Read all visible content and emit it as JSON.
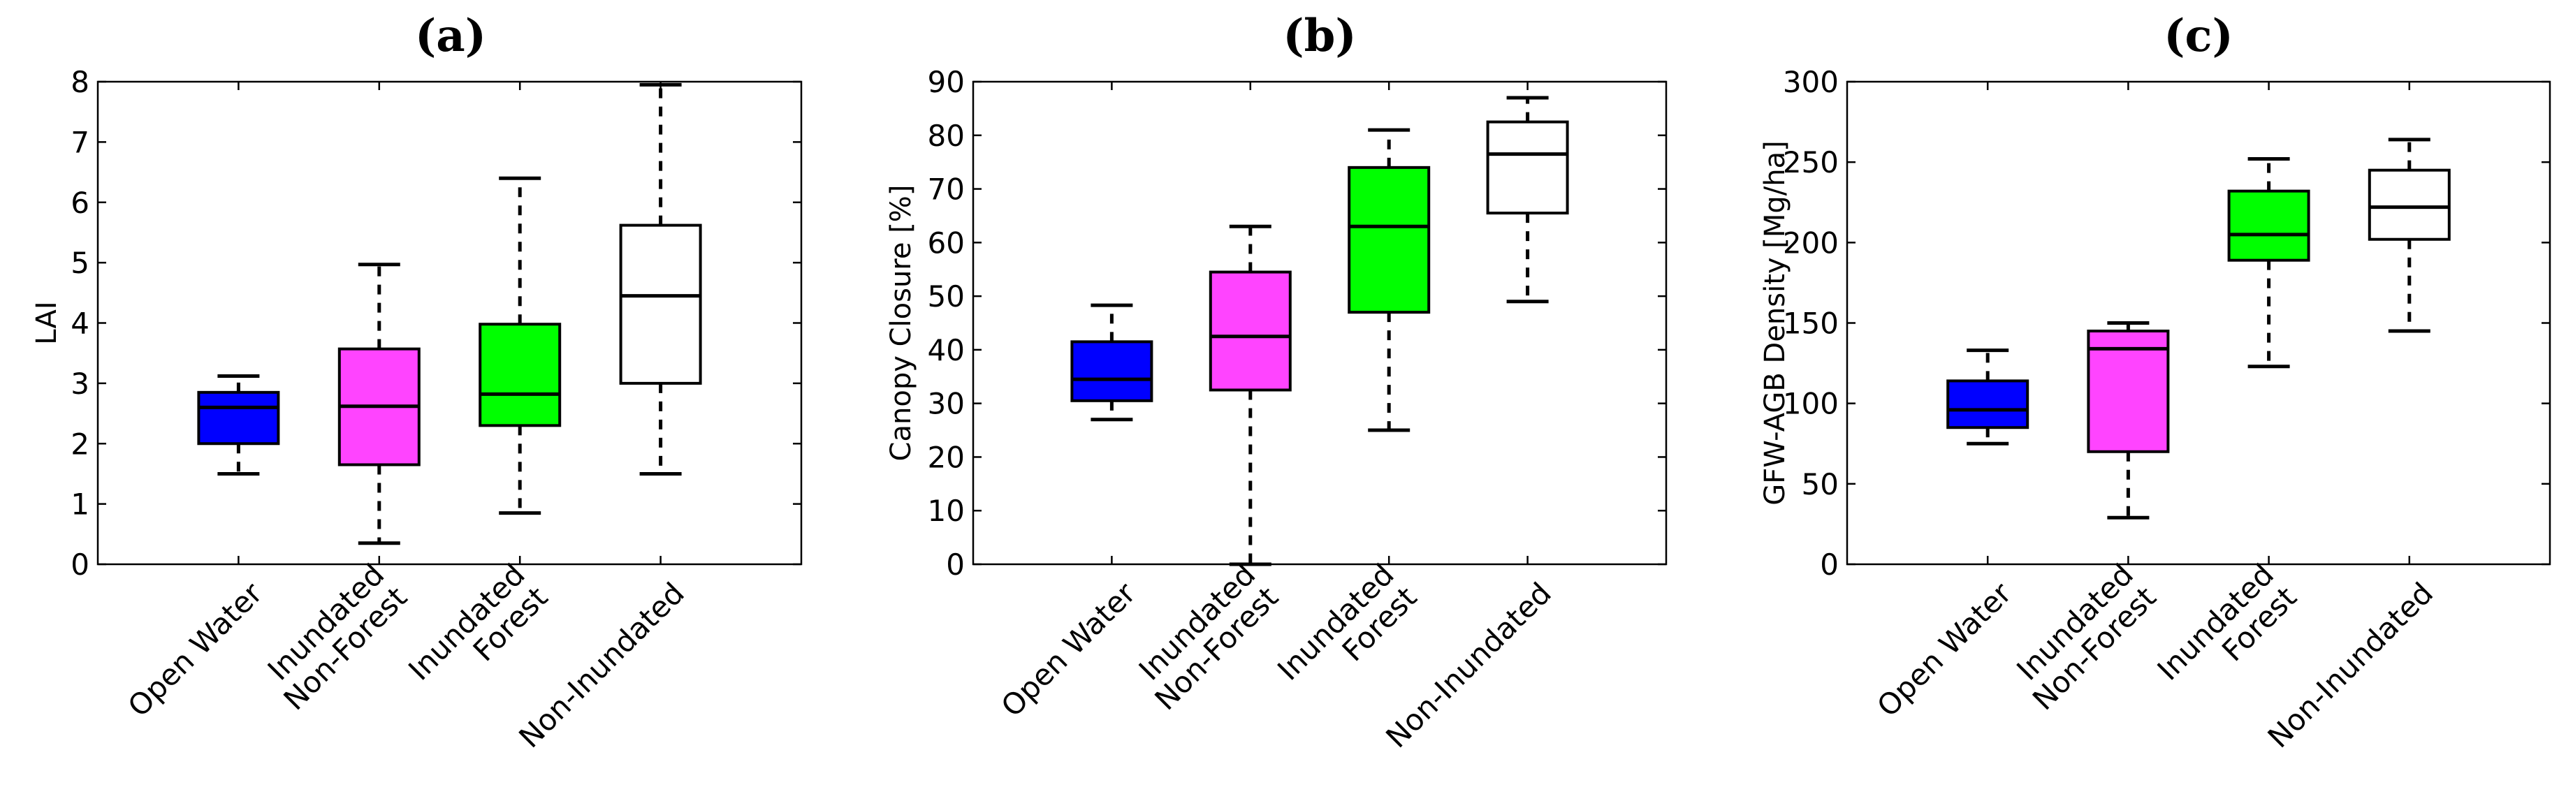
{
  "chart_data": [
    {
      "type": "box",
      "title": "(a)",
      "ylabel": "LAI",
      "ylim": [
        0,
        8
      ],
      "yticks": [
        "0",
        "1",
        "2",
        "3",
        "4",
        "5",
        "6",
        "7",
        "8"
      ],
      "categories": [
        "Open Water",
        "Inundated Non-Forest",
        "Inundated Forest",
        "Non-Inundated"
      ],
      "category_lines": [
        [
          "Open Water"
        ],
        [
          "Inundated",
          "Non-Forest"
        ],
        [
          "Inundated",
          "Forest"
        ],
        [
          "Non-Inundated"
        ]
      ],
      "boxes": [
        {
          "min": 1.5,
          "q1": 2.0,
          "median": 2.6,
          "q3": 2.85,
          "max": 3.12
        },
        {
          "min": 0.35,
          "q1": 1.65,
          "median": 2.62,
          "q3": 3.57,
          "max": 4.97
        },
        {
          "min": 0.85,
          "q1": 2.3,
          "median": 2.82,
          "q3": 3.98,
          "max": 6.4
        },
        {
          "min": 1.5,
          "q1": 3.0,
          "median": 4.45,
          "q3": 5.62,
          "max": 7.95
        }
      ]
    },
    {
      "type": "box",
      "title": "(b)",
      "ylabel": "Canopy Closure [%]",
      "ylim": [
        0,
        90
      ],
      "yticks": [
        "0",
        "10",
        "20",
        "30",
        "40",
        "50",
        "60",
        "70",
        "80",
        "90"
      ],
      "categories": [
        "Open Water",
        "Inundated Non-Forest",
        "Inundated Forest",
        "Non-Inundated"
      ],
      "category_lines": [
        [
          "Open Water"
        ],
        [
          "Inundated",
          "Non-Forest"
        ],
        [
          "Inundated",
          "Forest"
        ],
        [
          "Non-Inundated"
        ]
      ],
      "boxes": [
        {
          "min": 27,
          "q1": 30.5,
          "median": 34.5,
          "q3": 41.5,
          "max": 48.3
        },
        {
          "min": 0,
          "q1": 32.5,
          "median": 42.5,
          "q3": 54.5,
          "max": 63
        },
        {
          "min": 25,
          "q1": 47,
          "median": 63,
          "q3": 74,
          "max": 81
        },
        {
          "min": 49,
          "q1": 65.5,
          "median": 76.5,
          "q3": 82.5,
          "max": 87
        }
      ]
    },
    {
      "type": "box",
      "title": "(c)",
      "ylabel": "GFW-AGB Density [Mg/ha]",
      "ylim": [
        0,
        300
      ],
      "yticks": [
        "0",
        "50",
        "100",
        "150",
        "200",
        "250",
        "300"
      ],
      "categories": [
        "Open Water",
        "Inundated Non-Forest",
        "Inundated Forest",
        "Non-Inundated"
      ],
      "category_lines": [
        [
          "Open Water"
        ],
        [
          "Inundated",
          "Non-Forest"
        ],
        [
          "Inundated",
          "Forest"
        ],
        [
          "Non-Inundated"
        ]
      ],
      "boxes": [
        {
          "min": 75,
          "q1": 85,
          "median": 96,
          "q3": 114,
          "max": 133
        },
        {
          "min": 29,
          "q1": 70,
          "median": 134,
          "q3": 145,
          "max": 150
        },
        {
          "min": 123,
          "q1": 189,
          "median": 205,
          "q3": 232,
          "max": 252
        },
        {
          "min": 145,
          "q1": 202,
          "median": 222,
          "q3": 245,
          "max": 264
        }
      ]
    }
  ],
  "colors": {
    "open_water": "#0000ff",
    "inundated_non_forest": "#ff44ff",
    "inundated_forest": "#00ff00",
    "non_inundated": "#ffffff"
  }
}
